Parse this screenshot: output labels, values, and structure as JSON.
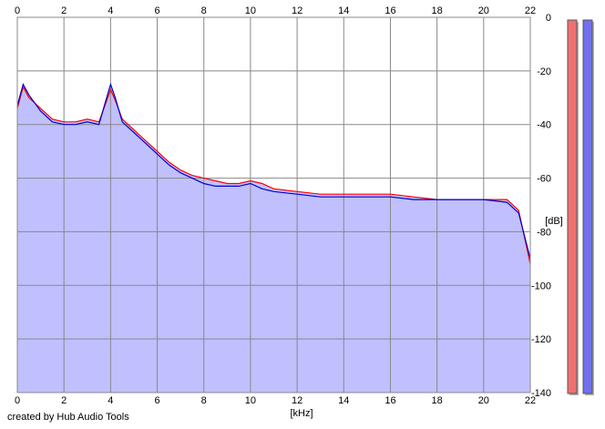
{
  "footer": {
    "credit": "created by Hub Audio Tools"
  },
  "chart_data": {
    "type": "area",
    "title": "",
    "xlabel": "[kHz]",
    "ylabel": "[dB]",
    "xlim": [
      0,
      22
    ],
    "ylim": [
      -140,
      0
    ],
    "x_ticks": [
      0,
      2,
      4,
      6,
      8,
      10,
      12,
      14,
      16,
      18,
      20,
      22
    ],
    "y_ticks": [
      0,
      -20,
      -40,
      -60,
      -80,
      -100,
      -120,
      -140
    ],
    "grid": true,
    "colors": {
      "background": "#ffffff",
      "grid": "#888888",
      "fill": "#c0c0ff",
      "channel_red": "#ff0000",
      "channel_blue": "#0000cc",
      "meter_red": "#f07070",
      "meter_blue": "#7070f0"
    },
    "series": [
      {
        "color_key": "channel_red",
        "x": [
          0,
          0.25,
          0.5,
          0.75,
          1,
          1.5,
          2,
          2.5,
          3,
          3.5,
          3.8,
          4,
          4.2,
          4.5,
          5,
          5.5,
          6,
          6.5,
          7,
          7.5,
          8,
          8.5,
          9,
          9.5,
          10,
          10.5,
          11,
          12,
          13,
          14,
          15,
          16,
          17,
          18,
          19,
          20,
          21,
          21.5,
          22
        ],
        "values": [
          -34,
          -26,
          -30,
          -32,
          -34,
          -38,
          -39,
          -39,
          -38,
          -39,
          -32,
          -27,
          -31,
          -38,
          -42,
          -46,
          -50,
          -54,
          -57,
          -59,
          -60,
          -61,
          -62,
          -62,
          -61,
          -62,
          -64,
          -65,
          -66,
          -66,
          -66,
          -66,
          -67,
          -68,
          -68,
          -68,
          -68,
          -72,
          -92
        ]
      },
      {
        "color_key": "channel_blue",
        "x": [
          0,
          0.25,
          0.5,
          0.75,
          1,
          1.5,
          2,
          2.5,
          3,
          3.5,
          3.8,
          4,
          4.2,
          4.5,
          5,
          5.5,
          6,
          6.5,
          7,
          7.5,
          8,
          8.5,
          9,
          9.5,
          10,
          10.5,
          11,
          12,
          13,
          14,
          15,
          16,
          17,
          18,
          19,
          20,
          21,
          21.5,
          22
        ],
        "values": [
          -33,
          -25,
          -29,
          -32,
          -35,
          -39,
          -40,
          -40,
          -39,
          -40,
          -31,
          -25,
          -30,
          -39,
          -43,
          -47,
          -51,
          -55,
          -58,
          -60,
          -62,
          -63,
          -63,
          -63,
          -62,
          -64,
          -65,
          -66,
          -67,
          -67,
          -67,
          -67,
          -68,
          -68,
          -68,
          -68,
          -69,
          -73,
          -90
        ]
      }
    ],
    "meters": [
      {
        "color_key": "meter_red",
        "level": 1.0
      },
      {
        "color_key": "meter_blue",
        "level": 1.0
      }
    ]
  }
}
